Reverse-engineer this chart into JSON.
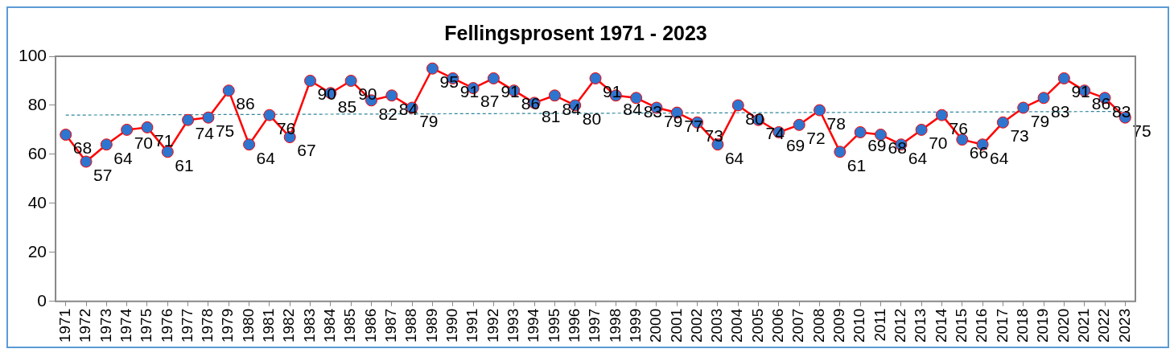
{
  "chart_data": {
    "type": "line",
    "title": "Fellingsprosent 1971 - 2023",
    "x": [
      1971,
      1972,
      1973,
      1974,
      1975,
      1976,
      1977,
      1978,
      1979,
      1980,
      1981,
      1982,
      1983,
      1984,
      1985,
      1986,
      1987,
      1988,
      1989,
      1990,
      1991,
      1992,
      1993,
      1994,
      1995,
      1996,
      1997,
      1998,
      1999,
      2000,
      2001,
      2002,
      2003,
      2004,
      2005,
      2006,
      2007,
      2008,
      2009,
      2010,
      2011,
      2012,
      2013,
      2014,
      2015,
      2016,
      2017,
      2018,
      2019,
      2020,
      2021,
      2022,
      2023
    ],
    "xlim": [
      1970.5,
      2023.5
    ],
    "xticks": [
      1971,
      1972,
      1973,
      1974,
      1975,
      1976,
      1977,
      1978,
      1979,
      1980,
      1981,
      1982,
      1983,
      1984,
      1985,
      1986,
      1987,
      1988,
      1989,
      1990,
      1991,
      1992,
      1993,
      1994,
      1995,
      1996,
      1997,
      1998,
      1999,
      2000,
      2001,
      2002,
      2003,
      2004,
      2005,
      2006,
      2007,
      2008,
      2009,
      2010,
      2011,
      2012,
      2013,
      2014,
      2015,
      2016,
      2017,
      2018,
      2019,
      2020,
      2021,
      2022,
      2023
    ],
    "series": [
      {
        "color": "#ff0000",
        "marker": "circle",
        "line_style": "solid",
        "values": [
          68,
          57,
          64,
          70,
          71,
          61,
          74,
          75,
          86,
          64,
          76,
          67,
          90,
          85,
          90,
          82,
          84,
          79,
          95,
          91,
          87,
          91,
          86,
          81,
          84,
          80,
          91,
          84,
          83,
          79,
          77,
          73,
          64,
          80,
          74,
          69,
          72,
          78,
          61,
          69,
          68,
          64,
          70,
          76,
          66,
          64,
          73,
          79,
          83,
          91,
          86,
          83,
          75
        ],
        "value_labels": [
          "68",
          "57",
          "64",
          "70",
          "71",
          "61",
          "74",
          "75",
          "86",
          "64",
          "76",
          "67",
          "90",
          "85",
          "90",
          "82",
          "84",
          "79",
          "95",
          "91",
          "87",
          "91",
          "86",
          "81",
          "84",
          "80",
          "91",
          "84",
          "83",
          "79",
          "77",
          "73",
          "64",
          "80",
          "74",
          "69",
          "72",
          "78",
          "61",
          "69",
          "68",
          "64",
          "70",
          "76",
          "66",
          "64",
          "73",
          "79",
          "83",
          "91",
          "86",
          "83",
          "75"
        ]
      },
      {
        "type": "line",
        "color": "#31859c",
        "marker": "none",
        "line_style": "dashed",
        "x": [
          1971,
          2023
        ],
        "values": [
          76,
          77.5
        ]
      }
    ],
    "ylim": [
      0,
      100
    ],
    "yticks": [
      0,
      20,
      40,
      60,
      80,
      100
    ],
    "grid": false,
    "legend": false
  }
}
